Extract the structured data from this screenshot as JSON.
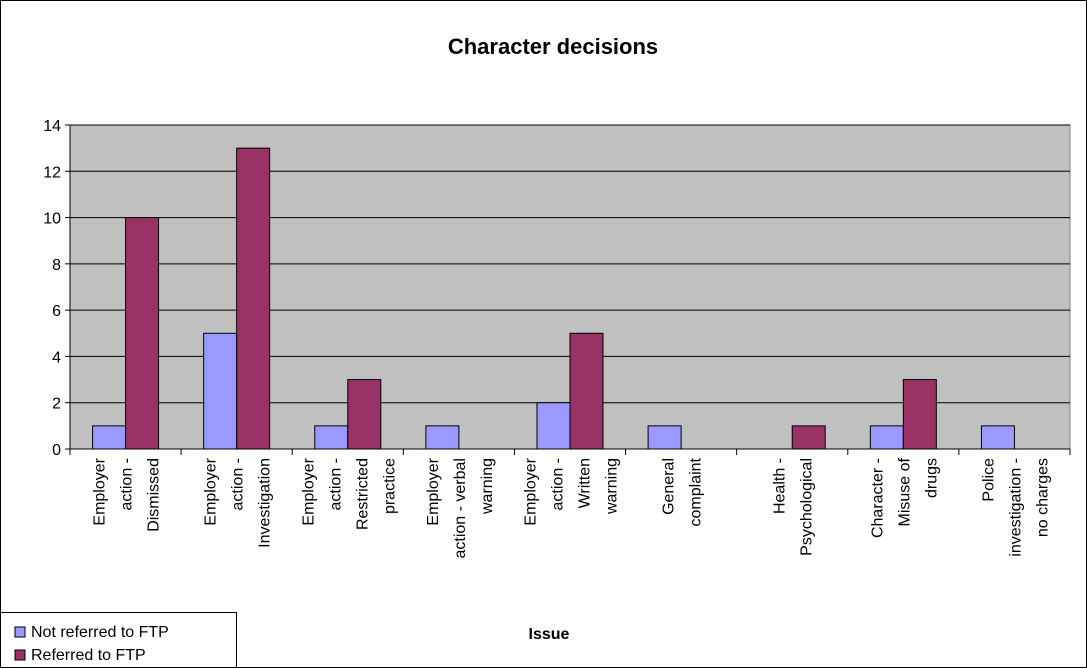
{
  "chart_data": {
    "type": "bar",
    "title": "Character decisions",
    "xlabel": "Issue",
    "ylabel": "",
    "ylim": [
      0,
      14
    ],
    "yticks": [
      0,
      2,
      4,
      6,
      8,
      10,
      12,
      14
    ],
    "grid": true,
    "legend_position": "bottom-left",
    "categories": [
      [
        "Employer",
        "action -",
        "Dismissed"
      ],
      [
        "Employer",
        "action -",
        "Investigation"
      ],
      [
        "Employer",
        "action -",
        "Restricted",
        "practice"
      ],
      [
        "Employer",
        "action - verbal",
        "warning"
      ],
      [
        "Employer",
        "action -",
        "Written",
        "warning"
      ],
      [
        "General",
        "complaint"
      ],
      [
        "Health -",
        "Psychological"
      ],
      [
        "Character -",
        "Misuse of",
        "drugs"
      ],
      [
        "Police",
        "investigation -",
        "no charges"
      ]
    ],
    "series": [
      {
        "name": "Not referred to FTP",
        "color": "#9999ff",
        "values": [
          1,
          5,
          1,
          1,
          2,
          1,
          0,
          1,
          1
        ]
      },
      {
        "name": "Referred to FTP",
        "color": "#993366",
        "values": [
          10,
          13,
          3,
          0,
          5,
          0,
          1,
          3,
          0
        ]
      }
    ],
    "plot_background": "#c0c0c0"
  }
}
